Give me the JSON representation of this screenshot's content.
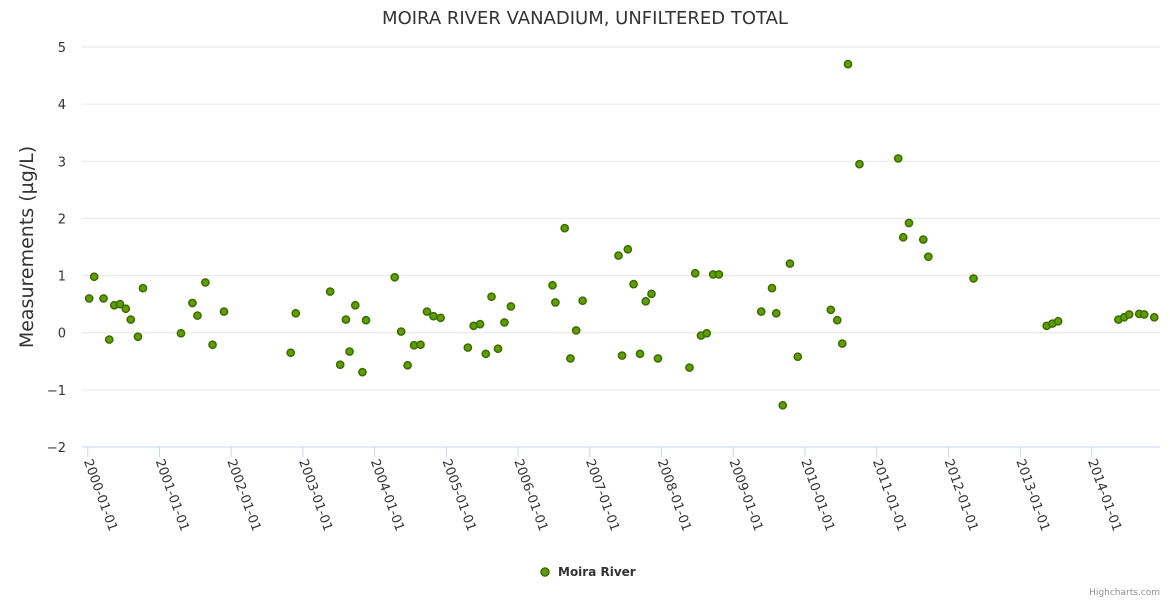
{
  "chart_data": {
    "type": "scatter",
    "title": "MOIRA RIVER VANADIUM, UNFILTERED TOTAL",
    "xlabel": "",
    "ylabel": "Measurements (µg/L)",
    "ylim": [
      -2,
      5
    ],
    "yticks": [
      "5",
      "4",
      "3",
      "2",
      "1",
      "0",
      "−1",
      "−2"
    ],
    "ytick_values": [
      5,
      4,
      3,
      2,
      1,
      0,
      -1,
      -2
    ],
    "xlim": [
      1999.92,
      2014.95
    ],
    "xticks": [
      "2000-01-01",
      "2001-01-01",
      "2002-01-01",
      "2003-01-01",
      "2004-01-01",
      "2005-01-01",
      "2006-01-01",
      "2007-01-01",
      "2008-01-01",
      "2009-01-01",
      "2010-01-01",
      "2011-01-01",
      "2012-01-01",
      "2013-01-01",
      "2014-01-01"
    ],
    "xtick_values": [
      2000,
      2001,
      2002,
      2003,
      2004,
      2005,
      2006,
      2007,
      2008,
      2009,
      2010,
      2011,
      2012,
      2013,
      2014
    ],
    "legend_position": "bottom-center",
    "grid": true,
    "series": [
      {
        "name": "Moira River",
        "color": "#5e9e00",
        "stroke": "#3d6b00",
        "points": [
          [
            2000.02,
            0.6
          ],
          [
            2000.09,
            0.98
          ],
          [
            2000.22,
            0.6
          ],
          [
            2000.3,
            -0.12
          ],
          [
            2000.37,
            0.48
          ],
          [
            2000.45,
            0.5
          ],
          [
            2000.53,
            0.42
          ],
          [
            2000.6,
            0.23
          ],
          [
            2000.7,
            -0.07
          ],
          [
            2000.77,
            0.78
          ],
          [
            2001.3,
            -0.01
          ],
          [
            2001.46,
            0.52
          ],
          [
            2001.53,
            0.3
          ],
          [
            2001.64,
            0.88
          ],
          [
            2001.74,
            -0.21
          ],
          [
            2001.9,
            0.37
          ],
          [
            2002.83,
            -0.35
          ],
          [
            2002.9,
            0.34
          ],
          [
            2003.38,
            0.72
          ],
          [
            2003.52,
            -0.56
          ],
          [
            2003.6,
            0.23
          ],
          [
            2003.65,
            -0.33
          ],
          [
            2003.73,
            0.48
          ],
          [
            2003.83,
            -0.69
          ],
          [
            2003.88,
            0.22
          ],
          [
            2004.28,
            0.97
          ],
          [
            2004.37,
            0.02
          ],
          [
            2004.46,
            -0.57
          ],
          [
            2004.55,
            -0.22
          ],
          [
            2004.64,
            -0.21
          ],
          [
            2004.73,
            0.37
          ],
          [
            2004.82,
            0.29
          ],
          [
            2004.92,
            0.26
          ],
          [
            2005.3,
            -0.26
          ],
          [
            2005.38,
            0.12
          ],
          [
            2005.47,
            0.15
          ],
          [
            2005.55,
            -0.37
          ],
          [
            2005.63,
            0.63
          ],
          [
            2005.72,
            -0.28
          ],
          [
            2005.81,
            0.18
          ],
          [
            2005.9,
            0.46
          ],
          [
            2006.48,
            0.83
          ],
          [
            2006.52,
            0.53
          ],
          [
            2006.65,
            1.83
          ],
          [
            2006.73,
            -0.45
          ],
          [
            2006.81,
            0.04
          ],
          [
            2006.9,
            0.56
          ],
          [
            2007.4,
            1.35
          ],
          [
            2007.45,
            -0.4
          ],
          [
            2007.53,
            1.46
          ],
          [
            2007.61,
            0.85
          ],
          [
            2007.7,
            -0.37
          ],
          [
            2007.78,
            0.55
          ],
          [
            2007.86,
            0.68
          ],
          [
            2007.95,
            -0.45
          ],
          [
            2008.39,
            -0.61
          ],
          [
            2008.47,
            1.04
          ],
          [
            2008.55,
            -0.05
          ],
          [
            2008.63,
            -0.01
          ],
          [
            2008.72,
            1.02
          ],
          [
            2008.8,
            1.02
          ],
          [
            2009.39,
            0.37
          ],
          [
            2009.54,
            0.78
          ],
          [
            2009.6,
            0.34
          ],
          [
            2009.69,
            -1.27
          ],
          [
            2009.79,
            1.21
          ],
          [
            2009.9,
            -0.42
          ],
          [
            2010.36,
            0.4
          ],
          [
            2010.45,
            0.22
          ],
          [
            2010.52,
            -0.19
          ],
          [
            2010.6,
            4.7
          ],
          [
            2010.76,
            2.95
          ],
          [
            2011.3,
            3.05
          ],
          [
            2011.37,
            1.67
          ],
          [
            2011.45,
            1.92
          ],
          [
            2011.65,
            1.63
          ],
          [
            2011.72,
            1.33
          ],
          [
            2012.35,
            0.95
          ],
          [
            2013.37,
            0.12
          ],
          [
            2013.45,
            0.16
          ],
          [
            2013.53,
            0.2
          ],
          [
            2014.37,
            0.23
          ],
          [
            2014.45,
            0.27
          ],
          [
            2014.52,
            0.32
          ],
          [
            2014.66,
            0.33
          ],
          [
            2014.73,
            0.32
          ],
          [
            2014.87,
            0.27
          ]
        ]
      }
    ]
  },
  "credits": "Highcharts.com"
}
